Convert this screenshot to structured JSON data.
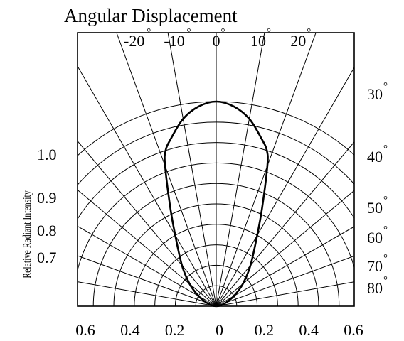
{
  "chart_data": {
    "type": "polar-half",
    "title": "Angular Displacement",
    "ylabel": "Relative Radiant Intensity",
    "x_ticks": [
      "0.6",
      "0.4",
      "0.2",
      "0",
      "0.2",
      "0.4",
      "0.6"
    ],
    "top_angle_ticks": [
      {
        "value": "-20",
        "deg": -20
      },
      {
        "value": "-10",
        "deg": -10
      },
      {
        "value": "0",
        "deg": 0
      },
      {
        "value": "10",
        "deg": 10
      },
      {
        "value": "20",
        "deg": 20
      }
    ],
    "right_angle_ticks": [
      {
        "value": "30",
        "deg": 30
      },
      {
        "value": "40",
        "deg": 40
      },
      {
        "value": "50",
        "deg": 50
      },
      {
        "value": "60",
        "deg": 60
      },
      {
        "value": "70",
        "deg": 70
      },
      {
        "value": "80",
        "deg": 80
      }
    ],
    "intensity_ticks": [
      "1.0",
      "0.9",
      "0.8",
      "0.7"
    ],
    "degree_symbol": "°",
    "radial_gridlines": [
      0.1,
      0.2,
      0.3,
      0.4,
      0.5,
      0.6,
      0.7,
      0.8,
      0.9,
      1.0
    ],
    "angular_gridline_step_deg": 10,
    "grid": true,
    "series": [
      {
        "angles_deg": [
          0,
          5,
          10,
          15,
          18,
          20,
          25,
          30,
          40,
          50,
          60,
          70,
          80,
          90
        ],
        "values": [
          1.0,
          0.98,
          0.93,
          0.85,
          0.8,
          0.73,
          0.53,
          0.4,
          0.26,
          0.17,
          0.1,
          0.05,
          0.02,
          0.0
        ]
      }
    ]
  }
}
